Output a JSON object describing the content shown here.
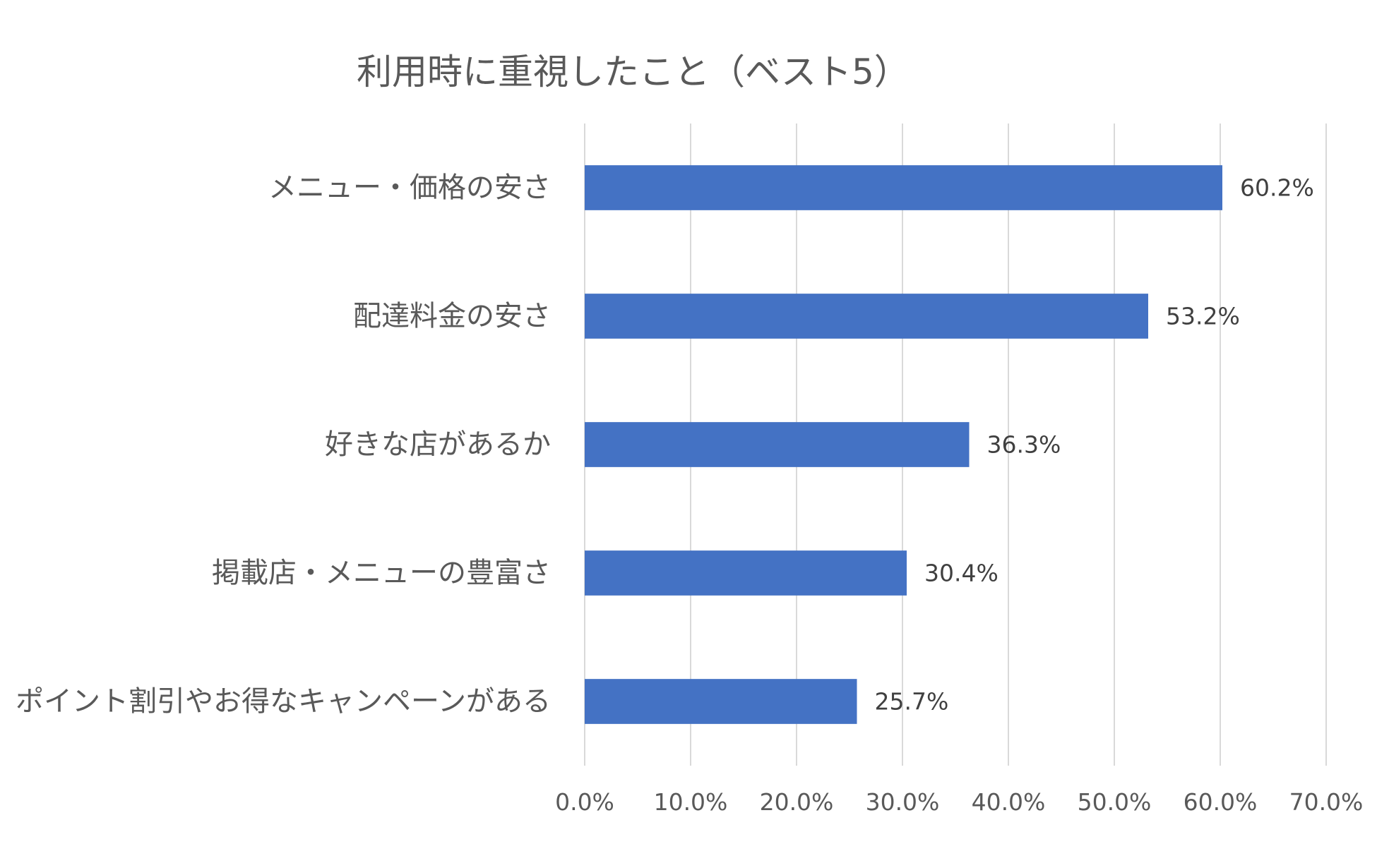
{
  "chart_data": {
    "type": "bar",
    "orientation": "horizontal",
    "title": "利用時に重視したこと（ベスト5）",
    "xlabel": "",
    "ylabel": "",
    "categories": [
      "メニュー・価格の安さ",
      "配達料金の安さ",
      "好きな店があるか",
      "掲載店・メニューの豊富さ",
      "ポイント割引やお得なキャンペーンがある"
    ],
    "values": [
      60.2,
      53.2,
      36.3,
      30.4,
      25.7
    ],
    "value_labels": [
      "60.2%",
      "53.2%",
      "36.3%",
      "30.4%",
      "25.7%"
    ],
    "xlim": [
      0,
      70
    ],
    "ticks": [
      0,
      10,
      20,
      30,
      40,
      50,
      60,
      70
    ],
    "tick_labels": [
      "0.0%",
      "10.0%",
      "20.0%",
      "30.0%",
      "40.0%",
      "50.0%",
      "60.0%",
      "70.0%"
    ],
    "grid": true,
    "legend": "none",
    "bar_color": "#4472C4",
    "grid_color": "#D9D9D9"
  }
}
